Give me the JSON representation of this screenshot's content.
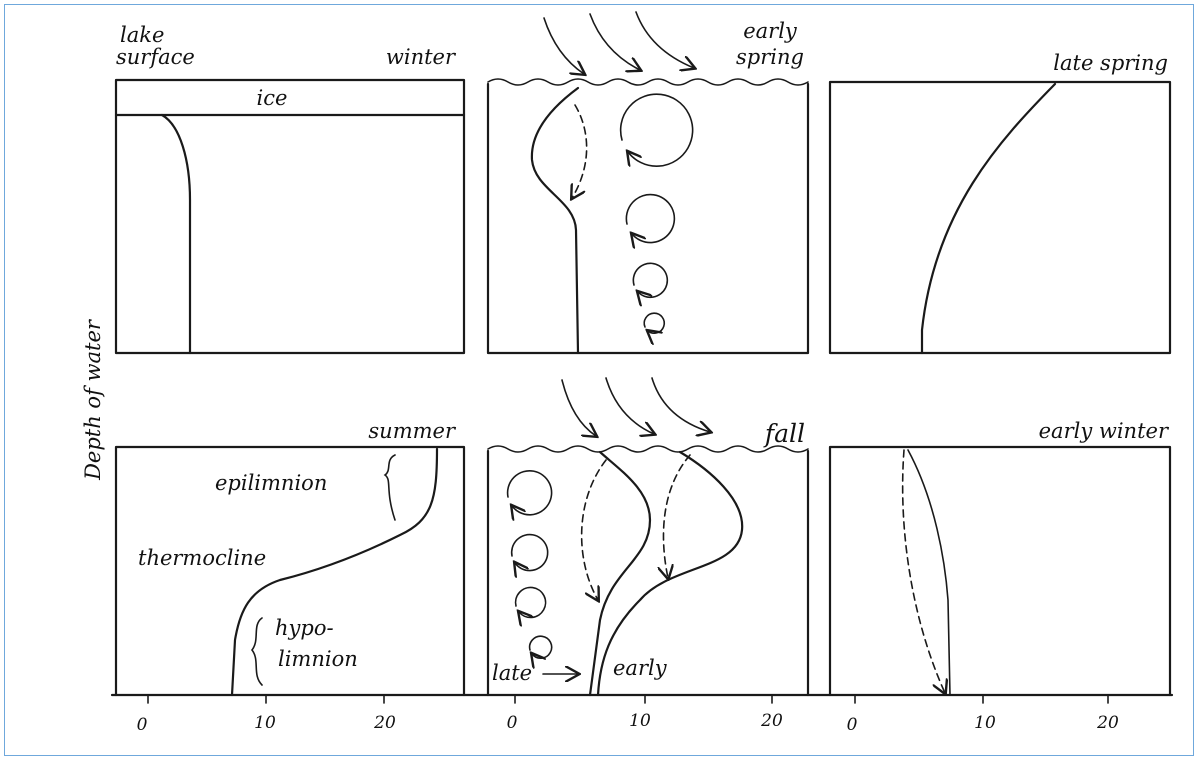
{
  "axis": {
    "ylabel": "Depth of water"
  },
  "panels": [
    {
      "id": "winter",
      "title": "winter",
      "corner": "lake surface",
      "extra": "ice"
    },
    {
      "id": "early-spring",
      "title_line1": "early",
      "title_line2": "spring"
    },
    {
      "id": "late-spring",
      "title": "late spring"
    },
    {
      "id": "summer",
      "title": "summer",
      "labels": {
        "epilimnion": "epilimnion",
        "thermocline": "thermocline",
        "hypo1": "hypo-",
        "hypo2": "limnion"
      }
    },
    {
      "id": "fall",
      "title": "fall",
      "labels": {
        "late": "late",
        "early": "early"
      }
    },
    {
      "id": "early-winter",
      "title": "early winter"
    }
  ],
  "corner_line1": "lake",
  "corner_line2": "surface",
  "ticks": {
    "p1": [
      "0",
      "10",
      "20"
    ],
    "p2": [
      "0",
      "10",
      "20"
    ],
    "p3": [
      "0",
      "10",
      "20"
    ]
  },
  "colors": {
    "frame": "#6fa8dc",
    "ink": "#1a1a1a"
  }
}
